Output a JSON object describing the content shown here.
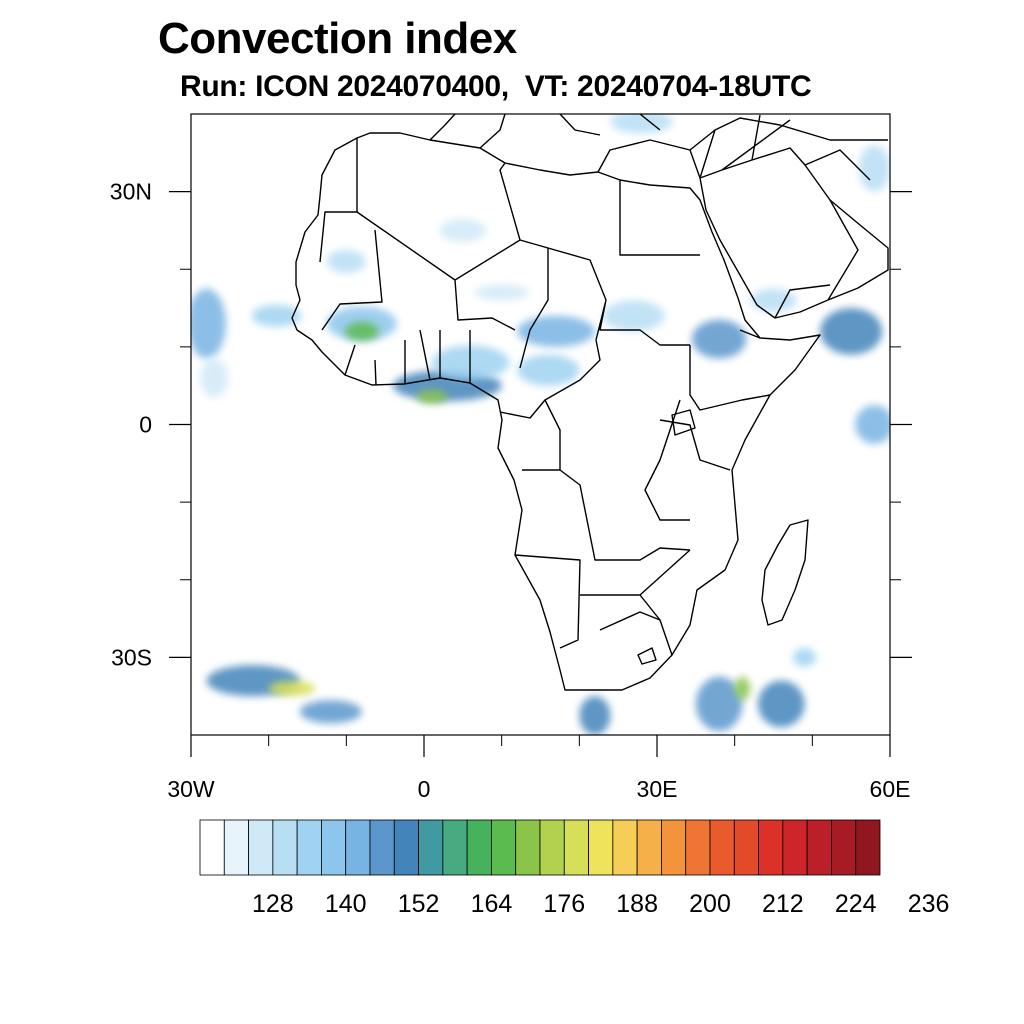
{
  "title": "Convection index",
  "subtitle": "Run: ICON 2024070400,  VT: 20240704-18UTC",
  "map": {
    "lon_range": [
      -30,
      60
    ],
    "lat_range": [
      -40,
      40
    ],
    "x_ticks": [
      {
        "lon": -30,
        "label": "30W"
      },
      {
        "lon": 0,
        "label": "0"
      },
      {
        "lon": 30,
        "label": "30E"
      },
      {
        "lon": 60,
        "label": "60E"
      }
    ],
    "y_ticks": [
      {
        "lat": 30,
        "label": "30N"
      },
      {
        "lat": 0,
        "label": "0"
      },
      {
        "lat": -30,
        "label": "30S"
      }
    ],
    "minor_x_lons": [
      -20,
      -10,
      10,
      20,
      40,
      50
    ],
    "minor_y_lats": [
      20,
      10,
      -10,
      -20
    ],
    "field_blobs": [
      {
        "lon": -19,
        "lat": 14,
        "rx": 3.2,
        "ry": 1.4,
        "level": 4
      },
      {
        "lon": -8,
        "lat": 13,
        "rx": 4.5,
        "ry": 2.2,
        "level": 5
      },
      {
        "lon": -8,
        "lat": 12,
        "rx": 2.2,
        "ry": 1.2,
        "level": 12
      },
      {
        "lon": 3,
        "lat": 5,
        "rx": 7,
        "ry": 2,
        "level": 8
      },
      {
        "lon": 1,
        "lat": 3.6,
        "rx": 2,
        "ry": 0.9,
        "level": 13
      },
      {
        "lon": 6,
        "lat": 8,
        "rx": 5,
        "ry": 2.2,
        "level": 4
      },
      {
        "lon": 17,
        "lat": 12,
        "rx": 5,
        "ry": 2,
        "level": 6
      },
      {
        "lon": 16,
        "lat": 7,
        "rx": 4,
        "ry": 2,
        "level": 4
      },
      {
        "lon": 27,
        "lat": 14,
        "rx": 4,
        "ry": 2,
        "level": 3
      },
      {
        "lon": 38,
        "lat": 11,
        "rx": 3.5,
        "ry": 2.5,
        "level": 7
      },
      {
        "lon": 45,
        "lat": 16,
        "rx": 3,
        "ry": 1.5,
        "level": 3
      },
      {
        "lon": 55,
        "lat": 12,
        "rx": 4,
        "ry": 3,
        "level": 8
      },
      {
        "lon": 58,
        "lat": 0,
        "rx": 2.5,
        "ry": 2.5,
        "level": 6
      },
      {
        "lon": -28,
        "lat": 13,
        "rx": 2.5,
        "ry": 4.5,
        "level": 6
      },
      {
        "lon": -27,
        "lat": 6,
        "rx": 1.8,
        "ry": 2.5,
        "level": 2
      },
      {
        "lon": -10,
        "lat": 21,
        "rx": 2.5,
        "ry": 1.5,
        "level": 3
      },
      {
        "lon": 10,
        "lat": 17,
        "rx": 3.5,
        "ry": 1,
        "level": 2
      },
      {
        "lon": 5,
        "lat": 25,
        "rx": 3,
        "ry": 1.5,
        "level": 2
      },
      {
        "lon": 28,
        "lat": 39,
        "rx": 4,
        "ry": 1.5,
        "level": 3
      },
      {
        "lon": -22,
        "lat": -33,
        "rx": 6,
        "ry": 2,
        "level": 8
      },
      {
        "lon": -17,
        "lat": -34,
        "rx": 3,
        "ry": 1,
        "level": 15
      },
      {
        "lon": -12,
        "lat": -37,
        "rx": 4,
        "ry": 1.5,
        "level": 7
      },
      {
        "lon": 22,
        "lat": -37.5,
        "rx": 2,
        "ry": 2.5,
        "level": 8
      },
      {
        "lon": 38,
        "lat": -36,
        "rx": 3,
        "ry": 3.5,
        "level": 7
      },
      {
        "lon": 41,
        "lat": -34,
        "rx": 1,
        "ry": 1.5,
        "level": 13
      },
      {
        "lon": 46,
        "lat": -36,
        "rx": 3,
        "ry": 3,
        "level": 8
      },
      {
        "lon": 49,
        "lat": -30,
        "rx": 1.5,
        "ry": 1.2,
        "level": 4
      },
      {
        "lon": 58,
        "lat": 33,
        "rx": 2,
        "ry": 3,
        "level": 3
      }
    ]
  },
  "colorbar": {
    "colors": [
      "#ffffff",
      "#e8f4fb",
      "#d0e9f7",
      "#b8def4",
      "#9fd3f1",
      "#8cc6ec",
      "#78b4e3",
      "#5b97cd",
      "#4384ba",
      "#3f9aa2",
      "#48aa80",
      "#44b35c",
      "#5cbb4e",
      "#8ac54a",
      "#b2d14f",
      "#d7de58",
      "#f0e35c",
      "#f6cd56",
      "#f5b04a",
      "#f3943c",
      "#ee7533",
      "#e95b2c",
      "#e34a2a",
      "#dc3129",
      "#cd2529",
      "#bb1f27",
      "#a71b24",
      "#901720"
    ],
    "labels": [
      "128",
      "140",
      "152",
      "164",
      "176",
      "188",
      "200",
      "212",
      "224",
      "236"
    ]
  }
}
